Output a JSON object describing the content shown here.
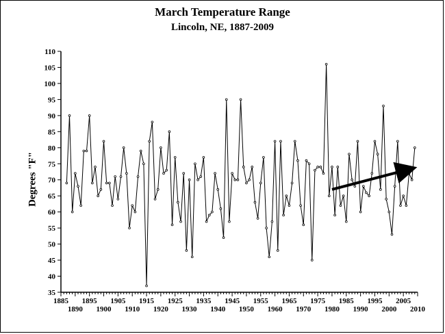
{
  "chart_data": {
    "type": "line",
    "title": "March Temperature Range",
    "subtitle": "Lincoln, NE, 1887-2009",
    "xlabel": "",
    "ylabel": "Degrees \"F\"",
    "xlim": [
      1885,
      2010
    ],
    "ylim": [
      35,
      110
    ],
    "yticks": [
      35,
      40,
      45,
      50,
      55,
      60,
      65,
      70,
      75,
      80,
      85,
      90,
      95,
      100,
      105,
      110
    ],
    "xticks_upper": [
      1885,
      1895,
      1905,
      1915,
      1925,
      1935,
      1945,
      1955,
      1965,
      1975,
      1985,
      1995,
      2005
    ],
    "xticks_lower": [
      1890,
      1900,
      1910,
      1920,
      1930,
      1940,
      1950,
      1960,
      1970,
      1980,
      1990,
      2000,
      2010
    ],
    "grid": false,
    "series": [
      {
        "x_start": 1887,
        "values": [
          69,
          90,
          60,
          72,
          68,
          62,
          79,
          79,
          90,
          69,
          74,
          65,
          67,
          82,
          69,
          69,
          62,
          71,
          64,
          71,
          80,
          72,
          55,
          62,
          60,
          71,
          79,
          75,
          37,
          82,
          88,
          64,
          67,
          80,
          72,
          73,
          85,
          56,
          77,
          63,
          57,
          72,
          48,
          70,
          46,
          75,
          70,
          71,
          77,
          57,
          59,
          60,
          72,
          67,
          61,
          52,
          95,
          57,
          72,
          70,
          70,
          95,
          74,
          69,
          70,
          74,
          63,
          58,
          69,
          77,
          55,
          46,
          57,
          82,
          48,
          82,
          59,
          65,
          62,
          69,
          82,
          76,
          62,
          56,
          76,
          75,
          45,
          73,
          74,
          74,
          72,
          106,
          65,
          74,
          59,
          74,
          62,
          65,
          57,
          78,
          70,
          68,
          82,
          60,
          68,
          66,
          65,
          72,
          82,
          78,
          67,
          93,
          64,
          60,
          53,
          68,
          82,
          62,
          65,
          62,
          72,
          70,
          80
        ]
      }
    ],
    "annotations": [
      {
        "type": "arrow",
        "from": [
          1980,
          67
        ],
        "to": [
          2008,
          73.5
        ]
      }
    ],
    "colors": {
      "line": "#000000",
      "axis": "#000000",
      "arrow": "#000000"
    }
  }
}
